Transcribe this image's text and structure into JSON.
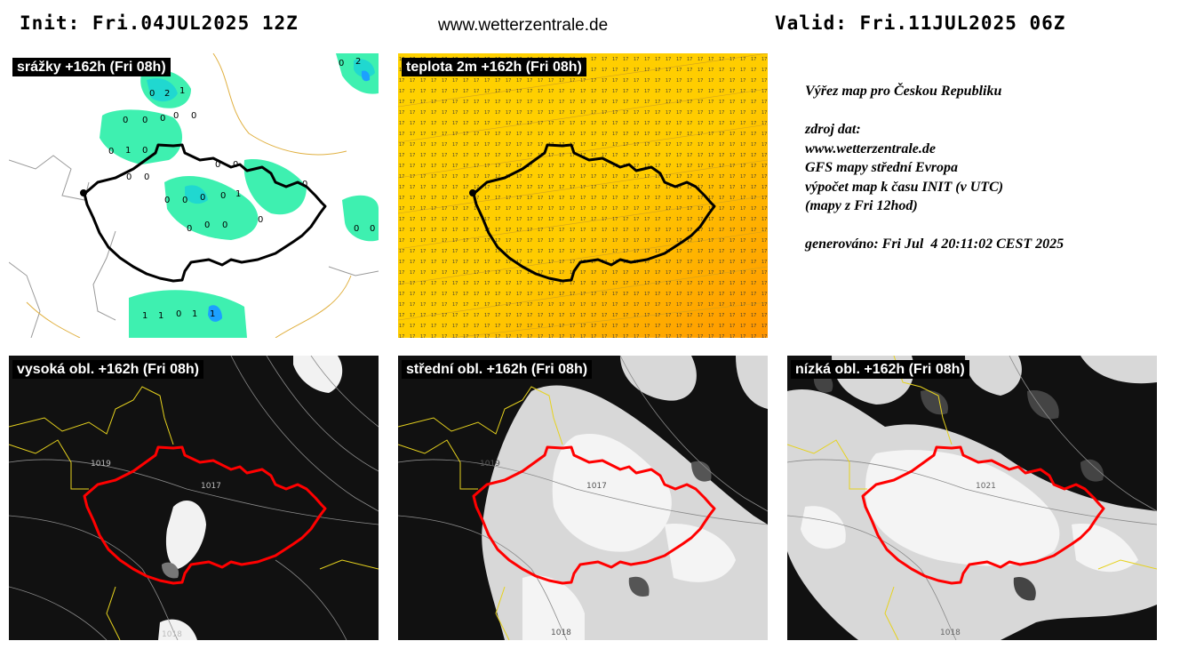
{
  "header": {
    "init": "Init: Fri.04JUL2025 12Z",
    "site": "www.wetterzentrale.de",
    "valid": "Valid: Fri.11JUL2025 06Z"
  },
  "panels": {
    "precip": {
      "title": "srážky +162h (Fri 08h)"
    },
    "temp": {
      "title": "teplota 2m +162h (Fri 08h)"
    },
    "high": {
      "title": "vysoká obl. +162h (Fri 08h)"
    },
    "mid": {
      "title": "střední obl. +162h (Fri 08h)"
    },
    "low": {
      "title": "nízká obl. +162h (Fri 08h)"
    }
  },
  "isobars": {
    "p1019": "1019",
    "p1017": "1017",
    "p1018": "1018",
    "p1021": "1021"
  },
  "info": {
    "line1": "Výřez map pro Českou Republiku",
    "line2": "zdroj dat:",
    "line3": "www.wetterzentrale.de",
    "line4": "GFS mapy střední Evropa",
    "line5": "výpočet map k času INIT (v UTC)",
    "line6": "(mapy z Fri 12hod)",
    "line7": "generováno: Fri Jul  4 20:11:02 CEST 2025"
  },
  "colors": {
    "border_black": "#000000",
    "border_red": "#ff0000",
    "precip_light": "#3ef0b0",
    "precip_mid": "#20d8d0",
    "precip_blue": "#1ca0ff",
    "temp_yellow": "#ffd200",
    "temp_orange": "#ff9a00",
    "cloud_bg": "#111111",
    "country_yellow": "#e6d21e"
  }
}
